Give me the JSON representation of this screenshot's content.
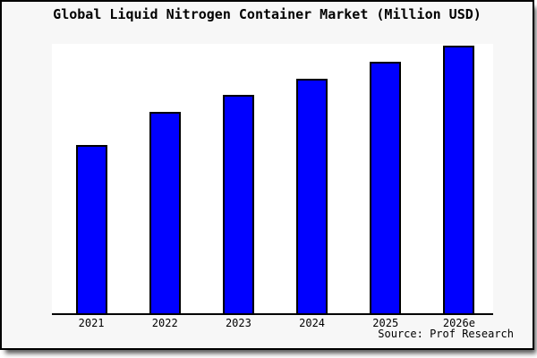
{
  "chart_data": {
    "type": "bar",
    "title": "Global Liquid Nitrogen Container Market (Million USD)",
    "categories": [
      "2021",
      "2022",
      "2023",
      "2024",
      "2025",
      "2026e"
    ],
    "values": [
      188,
      225,
      244,
      262,
      281,
      299
    ],
    "values_note": "chart has no y-axis scale; values are relative bar heights estimated from the plot (plot full height = 301)",
    "ylim": [
      0,
      301
    ],
    "xlabel": "",
    "ylabel": "",
    "grid": false,
    "legend": false,
    "source": "Source: Prof Research",
    "colors": {
      "bar_fill": "#0000ff",
      "bar_border": "#000000",
      "figure_background": "#f7f7f7",
      "plot_background": "#ffffff",
      "axis_line": "#000000",
      "text": "#000000"
    }
  }
}
